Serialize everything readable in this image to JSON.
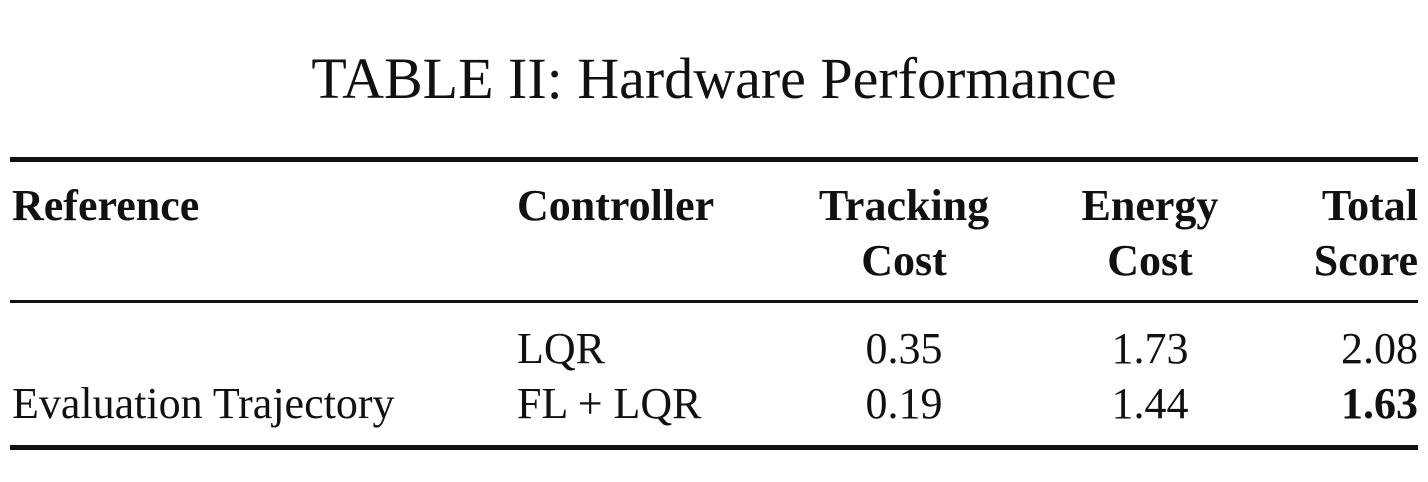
{
  "caption": "TABLE II: Hardware Performance",
  "table": {
    "headers": {
      "reference": "Reference",
      "controller": "Controller",
      "tracking": [
        "Tracking",
        "Cost"
      ],
      "energy": [
        "Energy",
        "Cost"
      ],
      "total": [
        "Total",
        "Score"
      ]
    },
    "reference_label": "Evaluation Trajectory",
    "rows": [
      {
        "controller": "LQR",
        "tracking_cost": "0.35",
        "energy_cost": "1.73",
        "total_score": "2.08",
        "best": false
      },
      {
        "controller": "FL + LQR",
        "tracking_cost": "0.19",
        "energy_cost": "1.44",
        "total_score": "1.63",
        "best": true
      }
    ]
  }
}
